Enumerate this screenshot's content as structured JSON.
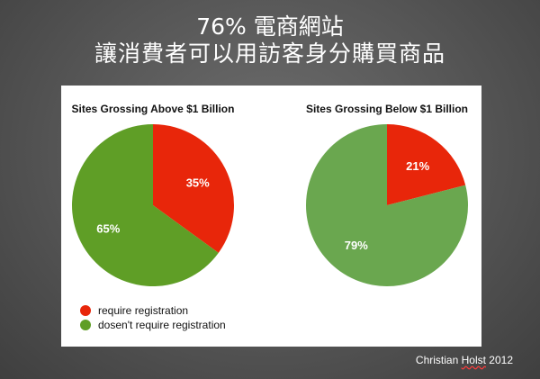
{
  "slide": {
    "title_line_1": "76% 電商網站",
    "title_line_2": "讓消費者可以用訪客身分購買商品",
    "credit_name_first": "Christian",
    "credit_name_last": "Holst",
    "credit_year": "2012"
  },
  "colors": {
    "require_registration": "#e8260a",
    "no_registration_left": "#5f9e26",
    "no_registration_right": "#6aa74f"
  },
  "chart_data": [
    {
      "type": "pie",
      "title": "Sites Grossing Above $1 Billion",
      "categories": [
        "require registration",
        "dosen't require registration"
      ],
      "values": [
        35,
        65
      ],
      "labels": [
        "35%",
        "65%"
      ],
      "legend_position": "bottom-left"
    },
    {
      "type": "pie",
      "title": "Sites Grossing Below $1 Billion",
      "categories": [
        "require registration",
        "dosen't require registration"
      ],
      "values": [
        21,
        79
      ],
      "labels": [
        "21%",
        "79%"
      ]
    }
  ],
  "legend": {
    "items": [
      {
        "label": "require registration"
      },
      {
        "label": "dosen't require registration"
      }
    ]
  }
}
